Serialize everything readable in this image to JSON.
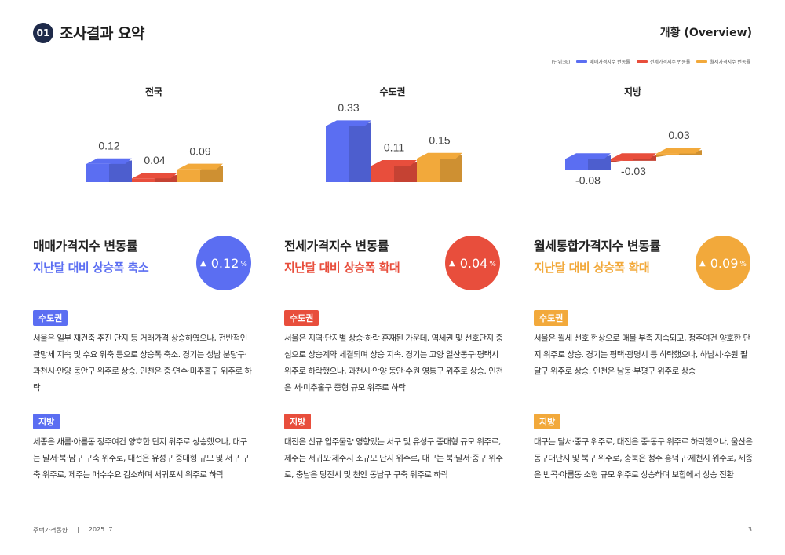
{
  "header": {
    "section_number": "01",
    "section_title": "조사결과 요약",
    "overview": "개황 (Overview)"
  },
  "legend": {
    "unit": "(단위:%)",
    "items": [
      {
        "label": "매매가격지수 변동률",
        "color": "#5b6ef2"
      },
      {
        "label": "전세가격지수 변동률",
        "color": "#e84e3c"
      },
      {
        "label": "월세가격지수 변동률",
        "color": "#f2a93b"
      }
    ]
  },
  "chart_data": {
    "type": "bar",
    "categories": [
      "전국",
      "수도권",
      "지방"
    ],
    "series": [
      {
        "name": "매매가격지수 변동률",
        "values": [
          0.12,
          0.33,
          -0.08
        ],
        "color": "#5b6ef2"
      },
      {
        "name": "전세가격지수 변동률",
        "values": [
          0.04,
          0.11,
          -0.03
        ],
        "color": "#e84e3c"
      },
      {
        "name": "월세가격지수 변동률",
        "values": [
          0.09,
          0.15,
          0.03
        ],
        "color": "#f2a93b"
      }
    ],
    "value_labels": [
      [
        "0.12",
        "0.04",
        "0.09"
      ],
      [
        "0.33",
        "0.11",
        "0.15"
      ],
      [
        "-0.08",
        "-0.03",
        "0.03"
      ]
    ]
  },
  "columns": [
    {
      "title": "매매가격지수 변동률",
      "subtitle": "지난달 대비 상승폭 축소",
      "color": "#5b6ef2",
      "badge_arrow": "▲",
      "badge_value": "0.12",
      "badge_unit": "%",
      "tag1": "수도권",
      "text1": "서울은 일부 재건축 추진 단지 등 거래가격 상승하였으나, 전반적인 관망세 지속 및 수요 위축 등으로 상승폭 축소. 경기는 성남 분당구·과천시·안양 동안구 위주로 상승, 인천은 중·연수·미추홀구 위주로 하락",
      "tag2": "지방",
      "text2": "세종은 새롬·아름동 정주여건 양호한 단지 위주로 상승했으나, 대구는 달서·북·남구 구축 위주로, 대전은 유성구 중대형 규모 및 서구 구축 위주로, 제주는 매수수요 감소하며 서귀포시 위주로 하락"
    },
    {
      "title": "전세가격지수 변동률",
      "subtitle": "지난달 대비 상승폭 확대",
      "color": "#e84e3c",
      "badge_arrow": "▲",
      "badge_value": "0.04",
      "badge_unit": "%",
      "tag1": "수도권",
      "text1": "서울은 지역·단지별 상승·하락 혼재된 가운데, 역세권 및 선호단지 중심으로 상승계약 체결되며 상승 지속. 경기는 고양 일산동구·평택시 위주로 하락했으나, 과천시·안양 동안·수원 영통구 위주로 상승. 인천은 서·미추홀구 중형 규모 위주로 하락",
      "tag2": "지방",
      "text2": "대전은 신규 입주물량 영향있는 서구 및 유성구 중대형 규모 위주로, 제주는 서귀포·제주시 소규모 단지 위주로, 대구는 북·달서·중구 위주로, 충남은 당진시 및 천안 동남구 구축 위주로 하락"
    },
    {
      "title": "월세통합가격지수 변동률",
      "subtitle": "지난달 대비 상승폭 확대",
      "color": "#f2a93b",
      "badge_arrow": "▲",
      "badge_value": "0.09",
      "badge_unit": "%",
      "tag1": "수도권",
      "text1": "서울은 월세 선호 현상으로 매물 부족 지속되고, 정주여건 양호한 단지 위주로 상승. 경기는 평택·광명시 등 하락했으나, 하남시·수원 팔달구 위주로 상승, 인천은 남동·부평구 위주로 상승",
      "tag2": "지방",
      "text2": "대구는 달서·중구 위주로, 대전은 중·동구 위주로 하락했으나, 울산은 동구대단지 및 북구 위주로, 충북은 청주 흥덕구·제천시 위주로, 세종은 반곡·아름동 소형 규모 위주로 상승하며 보합에서 상승 전환"
    }
  ],
  "footer": {
    "source": "주택가격동향",
    "separator": "|",
    "date": "2025. 7",
    "page": "3"
  }
}
